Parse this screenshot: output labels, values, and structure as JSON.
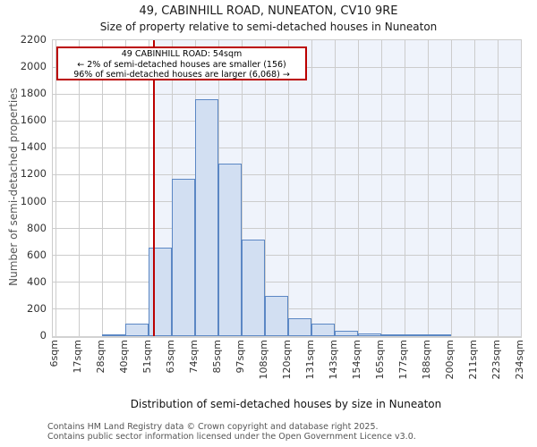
{
  "title": "49, CABINHILL ROAD, NUNEATON, CV10 9RE",
  "subtitle": "Size of property relative to semi-detached houses in Nuneaton",
  "annotation": {
    "line1": "49 CABINHILL ROAD: 54sqm",
    "line2": "← 2% of semi-detached houses are smaller (156)",
    "line3": "96% of semi-detached houses are larger (6,068) →"
  },
  "chart_data": {
    "type": "bar",
    "title": "Size of property relative to semi-detached houses in Nuneaton",
    "xlabel": "Distribution of semi-detached houses by size in Nuneaton",
    "ylabel": "Number of semi-detached properties",
    "x_tick_labels": [
      "6sqm",
      "17sqm",
      "28sqm",
      "40sqm",
      "51sqm",
      "63sqm",
      "74sqm",
      "85sqm",
      "97sqm",
      "108sqm",
      "120sqm",
      "131sqm",
      "143sqm",
      "154sqm",
      "165sqm",
      "177sqm",
      "188sqm",
      "200sqm",
      "211sqm",
      "223sqm",
      "234sqm"
    ],
    "bin_edges_sqm": [
      6,
      17,
      28,
      40,
      51,
      63,
      74,
      85,
      97,
      108,
      120,
      131,
      143,
      154,
      165,
      177,
      188,
      200,
      211,
      223,
      234
    ],
    "values": [
      0,
      0,
      10,
      90,
      660,
      1170,
      1760,
      1280,
      720,
      300,
      130,
      90,
      40,
      20,
      10,
      10,
      10,
      0,
      0,
      0
    ],
    "ylim": [
      0,
      2200
    ],
    "ytick_step": 200,
    "x_range_sqm": [
      6,
      234
    ],
    "marker_value_sqm": 54,
    "grid": true,
    "legend": "none"
  },
  "footer": {
    "line1": "Contains HM Land Registry data © Crown copyright and database right 2025.",
    "line2": "Contains public sector information licensed under the Open Government Licence v3.0."
  },
  "colors": {
    "marker_red": "#bb0000",
    "bar_fill": "#d2dff2",
    "bar_edge": "#5b87c4",
    "shade_right_of_marker": "#eff3fb",
    "gridline": "#cccccc"
  }
}
